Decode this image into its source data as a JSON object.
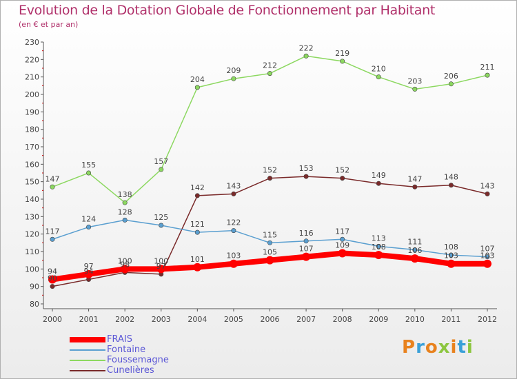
{
  "header": {
    "title": "Evolution de la Dotation Globale de Fonctionnement par Habitant",
    "subtitle": "(en € et par an)"
  },
  "logo": {
    "text": "Proxiti",
    "colors": [
      "#e8821e",
      "#3aa0d8",
      "#e8821e",
      "#8cc63f",
      "#e8821e",
      "#3aa0d8",
      "#8cc63f"
    ]
  },
  "chart_data": {
    "type": "line",
    "x": [
      "2000",
      "2001",
      "2002",
      "2003",
      "2004",
      "2005",
      "2006",
      "2007",
      "2008",
      "2009",
      "2010",
      "2011",
      "2012"
    ],
    "ylim": [
      80,
      230
    ],
    "yticks": [
      80,
      90,
      100,
      110,
      120,
      130,
      140,
      150,
      160,
      170,
      180,
      190,
      200,
      210,
      220,
      230
    ],
    "grid": false,
    "legend_position": "bottom-left",
    "series": [
      {
        "name": "Foussemagne",
        "color": "#8cd860",
        "values": [
          147,
          155,
          138,
          157,
          204,
          209,
          212,
          222,
          219,
          210,
          203,
          206,
          211
        ]
      },
      {
        "name": "Cunelières",
        "color": "#7a2a2a",
        "values": [
          90,
          94,
          98,
          97,
          142,
          143,
          152,
          153,
          152,
          149,
          147,
          148,
          143
        ]
      },
      {
        "name": "Fontaine",
        "color": "#5a9fd0",
        "values": [
          117,
          124,
          128,
          125,
          121,
          122,
          115,
          116,
          117,
          113,
          111,
          108,
          107
        ]
      },
      {
        "name": "FRAIS",
        "color": "#ff0000",
        "values": [
          94,
          97,
          100,
          100,
          101,
          103,
          105,
          107,
          109,
          108,
          106,
          103,
          103
        ]
      }
    ]
  }
}
